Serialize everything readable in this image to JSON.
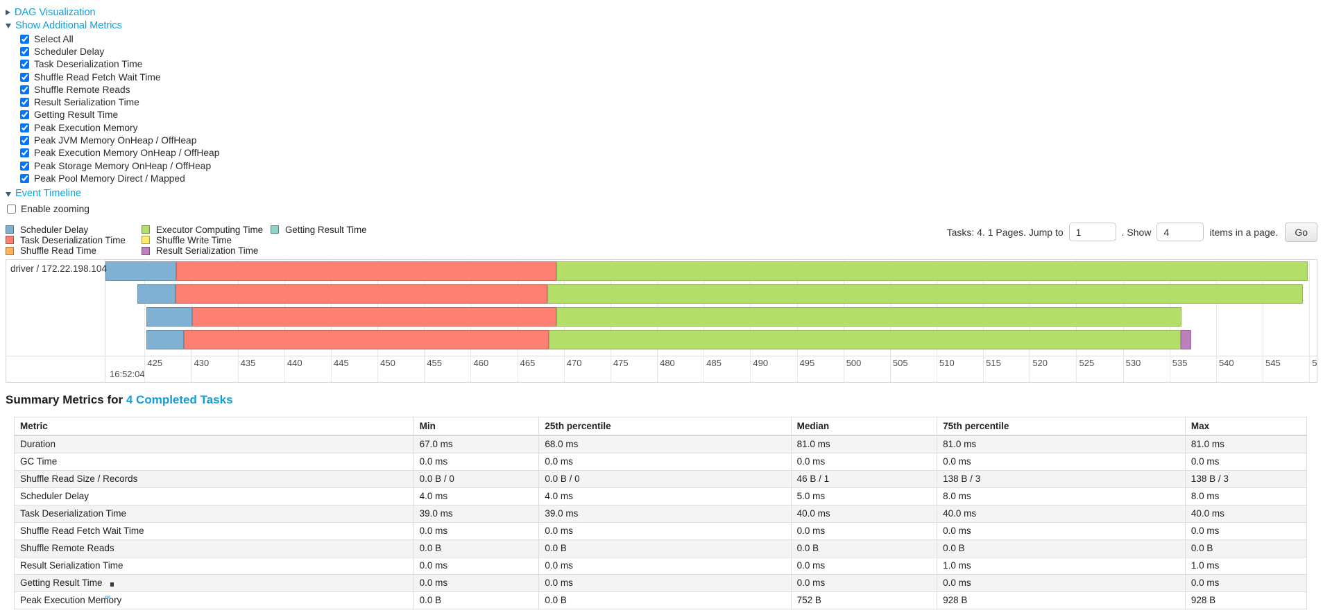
{
  "sections": {
    "dag": {
      "label": "DAG Visualization"
    },
    "additional_metrics": {
      "label": "Show Additional Metrics",
      "checkboxes": [
        "Select All",
        "Scheduler Delay",
        "Task Deserialization Time",
        "Shuffle Read Fetch Wait Time",
        "Shuffle Remote Reads",
        "Result Serialization Time",
        "Getting Result Time",
        "Peak Execution Memory",
        "Peak JVM Memory OnHeap / OffHeap",
        "Peak Execution Memory OnHeap / OffHeap",
        "Peak Storage Memory OnHeap / OffHeap",
        "Peak Pool Memory Direct / Mapped"
      ],
      "all_checked": true
    },
    "event_timeline": {
      "label": "Event Timeline",
      "enable_zooming_label": "Enable zooming",
      "enable_zooming_checked": false
    }
  },
  "legend": {
    "columns": [
      [
        {
          "label": "Scheduler Delay",
          "color": "#80B1D3"
        },
        {
          "label": "Task Deserialization Time",
          "color": "#FB8072"
        },
        {
          "label": "Shuffle Read Time",
          "color": "#FDB462"
        }
      ],
      [
        {
          "label": "Executor Computing Time",
          "color": "#B3DE69"
        },
        {
          "label": "Shuffle Write Time",
          "color": "#FFED6F"
        },
        {
          "label": "Result Serialization Time",
          "color": "#BC80BD"
        }
      ],
      [
        {
          "label": "Getting Result Time",
          "color": "#8DD3C7"
        }
      ]
    ]
  },
  "pagination": {
    "tasks_text": "Tasks: 4. 1 Pages. Jump to",
    "jump_value": "1",
    "mid_text": ". Show",
    "show_value": "4",
    "suffix_text": "items in a page.",
    "go_label": "Go"
  },
  "chart_data": {
    "type": "timeline",
    "group_label": "driver / 172.22.198.104",
    "axis": {
      "min": 420.8,
      "max": 550.8,
      "tick_start": 425,
      "tick_step": 5,
      "tick_end": 550,
      "major_label": "16:52:04",
      "units": "ms past 16:52:04"
    },
    "colors": {
      "scheduler_delay": "#80B1D3",
      "task_deserialization": "#FB8072",
      "shuffle_read": "#FDB462",
      "executor_computing": "#B3DE69",
      "shuffle_write": "#FFED6F",
      "result_serialization": "#BC80BD",
      "getting_result": "#8DD3C7"
    },
    "tasks": [
      {
        "segments": [
          {
            "type": "scheduler_delay",
            "start": 420.8,
            "end": 428.4
          },
          {
            "type": "task_deserialization",
            "start": 428.4,
            "end": 469.2
          },
          {
            "type": "executor_computing",
            "start": 469.2,
            "end": 549.8
          }
        ]
      },
      {
        "segments": [
          {
            "type": "scheduler_delay",
            "start": 424.2,
            "end": 428.3
          },
          {
            "type": "task_deserialization",
            "start": 428.3,
            "end": 468.2
          },
          {
            "type": "executor_computing",
            "start": 468.2,
            "end": 549.3
          }
        ]
      },
      {
        "segments": [
          {
            "type": "scheduler_delay",
            "start": 425.2,
            "end": 430.1
          },
          {
            "type": "task_deserialization",
            "start": 430.1,
            "end": 469.2
          },
          {
            "type": "executor_computing",
            "start": 469.2,
            "end": 536.3
          }
        ]
      },
      {
        "segments": [
          {
            "type": "scheduler_delay",
            "start": 425.2,
            "end": 429.2
          },
          {
            "type": "task_deserialization",
            "start": 429.2,
            "end": 468.4
          },
          {
            "type": "executor_computing",
            "start": 468.4,
            "end": 536.2
          },
          {
            "type": "result_serialization",
            "start": 536.2,
            "end": 537.3
          }
        ]
      }
    ]
  },
  "summary": {
    "heading_prefix": "Summary Metrics for",
    "heading_link": "4 Completed Tasks",
    "table": {
      "columns": [
        "Metric",
        "Min",
        "25th percentile",
        "Median",
        "75th percentile",
        "Max"
      ],
      "column_widths_pct": [
        30.9,
        9.7,
        19.5,
        11.3,
        19.2,
        9.4
      ],
      "rows": [
        [
          "Duration",
          "67.0 ms",
          "68.0 ms",
          "81.0 ms",
          "81.0 ms",
          "81.0 ms"
        ],
        [
          "GC Time",
          "0.0 ms",
          "0.0 ms",
          "0.0 ms",
          "0.0 ms",
          "0.0 ms"
        ],
        [
          "Shuffle Read Size / Records",
          "0.0 B / 0",
          "0.0 B / 0",
          "46 B / 1",
          "138 B / 3",
          "138 B / 3"
        ],
        [
          "Scheduler Delay",
          "4.0 ms",
          "4.0 ms",
          "5.0 ms",
          "8.0 ms",
          "8.0 ms"
        ],
        [
          "Task Deserialization Time",
          "39.0 ms",
          "39.0 ms",
          "40.0 ms",
          "40.0 ms",
          "40.0 ms"
        ],
        [
          "Shuffle Read Fetch Wait Time",
          "0.0 ms",
          "0.0 ms",
          "0.0 ms",
          "0.0 ms",
          "0.0 ms"
        ],
        [
          "Shuffle Remote Reads",
          "0.0 B",
          "0.0 B",
          "0.0 B",
          "0.0 B",
          "0.0 B"
        ],
        [
          "Result Serialization Time",
          "0.0 ms",
          "0.0 ms",
          "0.0 ms",
          "1.0 ms",
          "1.0 ms"
        ],
        [
          "Getting Result Time",
          "0.0 ms",
          "0.0 ms",
          "0.0 ms",
          "0.0 ms",
          "0.0 ms"
        ],
        [
          "Peak Execution Memory",
          "0.0 B",
          "0.0 B",
          "752 B",
          "928 B",
          "928 B"
        ]
      ]
    }
  }
}
